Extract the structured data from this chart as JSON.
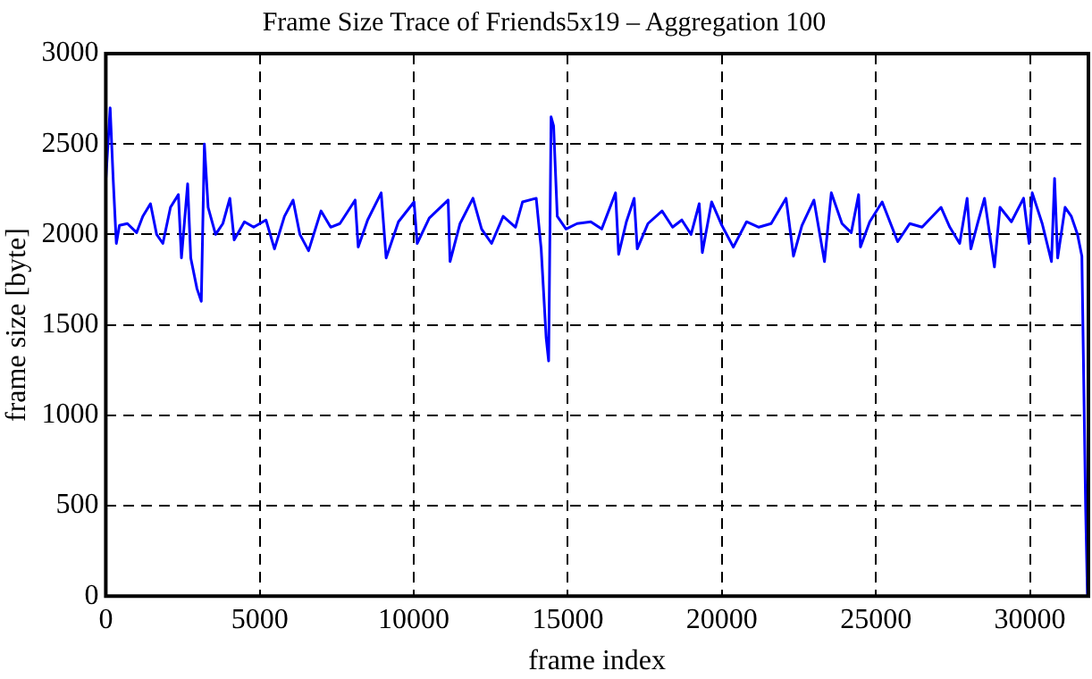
{
  "chart_data": {
    "type": "line",
    "title": "Frame Size Trace of Friends5x19 – Aggregation 100",
    "xlabel": "frame index",
    "ylabel": "frame size [byte]",
    "xlim": [
      0,
      31900
    ],
    "xticks": [
      0,
      5000,
      10000,
      15000,
      20000,
      25000,
      30000
    ],
    "ylim": [
      0,
      3000
    ],
    "yticks": [
      0,
      500,
      1000,
      1500,
      2000,
      2500,
      3000
    ],
    "grid": true,
    "legend": false,
    "marker": "none",
    "line_style": "solid",
    "series": [
      {
        "color": "#0000ff",
        "x": [
          0,
          141,
          241,
          342,
          443,
          700,
          1000,
          1200,
          1450,
          1650,
          1852,
          2100,
          2356,
          2456,
          2657,
          2758,
          2960,
          3100,
          3200,
          3322,
          3564,
          3800,
          4027,
          4168,
          4500,
          4800,
          5200,
          5476,
          5800,
          6080,
          6300,
          6583,
          6986,
          7300,
          7600,
          8094,
          8195,
          8500,
          8940,
          9101,
          9500,
          10007,
          10108,
          10500,
          11114,
          11175,
          11500,
          11920,
          12200,
          12524,
          12900,
          13300,
          13530,
          13973,
          14134,
          14295,
          14376,
          14456,
          14537,
          14657,
          14940,
          15300,
          15745,
          16100,
          16548,
          16649,
          16900,
          17152,
          17253,
          17600,
          18058,
          18400,
          18700,
          19000,
          19265,
          19366,
          19667,
          20000,
          20372,
          20800,
          21200,
          21600,
          22083,
          22325,
          22600,
          22989,
          23331,
          23553,
          23900,
          24200,
          24439,
          24499,
          24800,
          25204,
          25707,
          26100,
          26500,
          27116,
          27400,
          27720,
          27962,
          28083,
          28300,
          28526,
          28848,
          29029,
          29400,
          29794,
          29975,
          30076,
          30400,
          30700,
          30801,
          30901,
          31143,
          31345,
          31546,
          31687,
          31747,
          31808,
          31868
        ],
        "values": [
          2300,
          2700,
          2300,
          1950,
          2050,
          2060,
          2010,
          2100,
          2170,
          2000,
          1950,
          2150,
          2220,
          1870,
          2280,
          1870,
          1700,
          1630,
          2500,
          2150,
          2000,
          2060,
          2200,
          1970,
          2070,
          2040,
          2080,
          1920,
          2100,
          2190,
          2000,
          1910,
          2130,
          2040,
          2060,
          2190,
          1930,
          2080,
          2230,
          1870,
          2070,
          2180,
          1950,
          2090,
          2190,
          1850,
          2060,
          2200,
          2030,
          1950,
          2100,
          2040,
          2180,
          2200,
          1920,
          1430,
          1300,
          2650,
          2600,
          2100,
          2030,
          2060,
          2070,
          2030,
          2230,
          1890,
          2070,
          2200,
          1920,
          2060,
          2130,
          2040,
          2080,
          2000,
          2170,
          1900,
          2180,
          2050,
          1930,
          2070,
          2040,
          2060,
          2200,
          1880,
          2050,
          2190,
          1850,
          2230,
          2060,
          2010,
          2220,
          1930,
          2070,
          2180,
          1960,
          2060,
          2040,
          2150,
          2040,
          1950,
          2200,
          1920,
          2060,
          2200,
          1820,
          2150,
          2070,
          2200,
          1950,
          2230,
          2060,
          1850,
          2310,
          1870,
          2150,
          2100,
          2000,
          1880,
          1200,
          500,
          0
        ]
      }
    ]
  }
}
